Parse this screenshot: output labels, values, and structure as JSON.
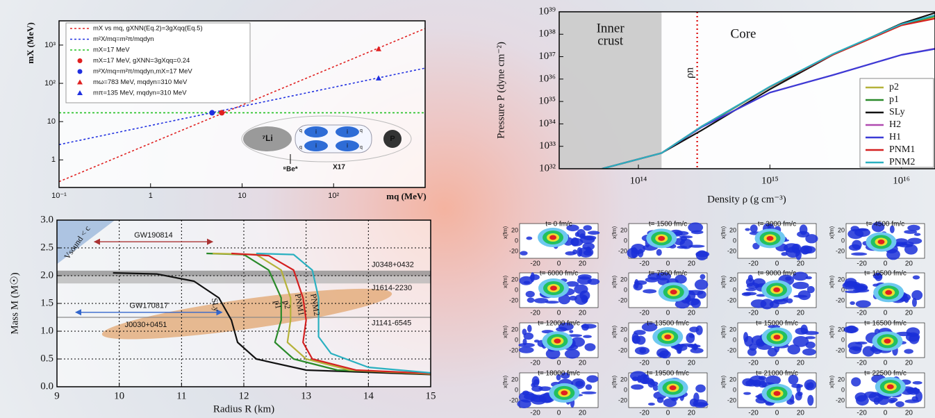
{
  "chart_data": [
    {
      "type": "line",
      "x_label": "mq (MeV)",
      "y_label": "mX (MeV)",
      "xscale": "log",
      "yscale": "log",
      "xlim": [
        0.1,
        1000
      ],
      "ylim": [
        0.19,
        4300
      ],
      "xticks": [
        {
          "value": 0.1,
          "label": "10⁻¹"
        },
        1,
        10,
        {
          "value": 100,
          "label": "10²"
        }
      ],
      "yticks": [
        1,
        10,
        {
          "value": 100,
          "label": "10²"
        },
        {
          "value": 1000,
          "label": "10³"
        }
      ],
      "legend": "upper left",
      "series": [
        {
          "name": "mX vs mq, gXNN(Eq.2)=3gXqq(Eq.5)",
          "color": "#e02020",
          "dash": "dotted",
          "x": [
            0.1,
            1000
          ],
          "values": [
            0.27,
            2700
          ]
        },
        {
          "name": "m²X/mq=m²π/mqdyn",
          "color": "#2030e0",
          "dash": "dotted",
          "x": [
            0.1,
            1000
          ],
          "values": [
            2.5,
            250
          ]
        },
        {
          "name": "mX=17 MeV",
          "color": "#20c020",
          "dash": "dotted",
          "x": [
            0.1,
            1000
          ],
          "values": [
            17,
            17
          ]
        },
        {
          "name": "mX=17 MeV, gXNN=3gXqq=0.24",
          "color": "#e02020",
          "marker": "circle",
          "x": [
            6
          ],
          "values": [
            17
          ]
        },
        {
          "name": "m²X/mq=m²π/mqdyn,mX=17 MeV",
          "color": "#2030e0",
          "marker": "circle",
          "x": [
            4.7
          ],
          "values": [
            17
          ]
        },
        {
          "name": "mω=783 MeV, mqdyn=310 MeV",
          "color": "#e02020",
          "marker": "triangle",
          "x": [
            310
          ],
          "values": [
            783
          ]
        },
        {
          "name": "mπ=135 MeV, mqdyn=310 MeV",
          "color": "#2030e0",
          "marker": "triangle",
          "x": [
            310
          ],
          "values": [
            135
          ]
        }
      ],
      "inset": {
        "nucleus": "⁷Li",
        "proton": "P",
        "product": "⁸Be*",
        "boson": "X17",
        "quark": "q",
        "cluster": "i"
      }
    },
    {
      "type": "line",
      "x_label": "Density ρ (g cm⁻³)",
      "y_label": "Pressure P (dyne cm⁻²)",
      "xscale": "log",
      "yscale": "log",
      "xlim": [
        25000000000000.0,
        1.8e+16
      ],
      "ylim": [
        1e+32,
        1e+39
      ],
      "xticks": [
        {
          "value": 100000000000000.0,
          "label": "10¹⁴"
        },
        {
          "value": 1000000000000000.0,
          "label": "10¹⁵"
        },
        {
          "value": 1e+16,
          "label": "10¹⁶"
        }
      ],
      "yticks": [
        {
          "value": 1e+32,
          "label": "10³²"
        },
        {
          "value": 1e+33,
          "label": "10³³"
        },
        {
          "value": 1e+34,
          "label": "10³⁴"
        },
        {
          "value": 1e+35,
          "label": "10³⁵"
        },
        {
          "value": 1e+36,
          "label": "10³⁶"
        },
        {
          "value": 1e+37,
          "label": "10³⁷"
        },
        {
          "value": 1e+38,
          "label": "10³⁸"
        },
        {
          "value": 1e+39,
          "label": "10³⁹"
        }
      ],
      "legend": "lower right",
      "crust": {
        "edge": 150000000000000.0,
        "labels": [
          "Inner",
          "crust"
        ]
      },
      "core_label": "Core",
      "rho_n": {
        "value": 280000000000000.0,
        "label": "ρn"
      },
      "series": [
        {
          "name": "p2",
          "color": "#b5b23a",
          "x": [
            53000000000000.0,
            150000000000000.0,
            300000000000000.0,
            1000000000000000.0,
            3000000000000000.0,
            1e+16,
            1.8e+16
          ],
          "values": [
            1e+32,
            5e+32,
            7e+33,
            4.5e+35,
            1.2e+37,
            2.5e+38,
            6e+38
          ]
        },
        {
          "name": "p1",
          "color": "#2a8a2a",
          "x": [
            53000000000000.0,
            150000000000000.0,
            300000000000000.0,
            1000000000000000.0,
            3000000000000000.0,
            1e+16,
            1.8e+16
          ],
          "values": [
            1e+32,
            5e+32,
            7e+33,
            4.5e+35,
            1.2e+37,
            2.7e+38,
            6.5e+38
          ]
        },
        {
          "name": "SLy",
          "color": "#111111",
          "x": [
            53000000000000.0,
            150000000000000.0,
            300000000000000.0,
            1000000000000000.0,
            3000000000000000.0,
            1e+16,
            1.8e+16
          ],
          "values": [
            1e+32,
            5e+32,
            5e+33,
            3.5e+35,
            1.2e+37,
            3e+38,
            9e+38
          ]
        },
        {
          "name": "H2",
          "color": "#b04ab0",
          "x": [
            53000000000000.0,
            150000000000000.0,
            300000000000000.0,
            1000000000000000.0,
            3000000000000000.0,
            1e+16,
            1.8e+16
          ],
          "values": [
            1e+32,
            5e+32,
            7e+33,
            2.5e+35,
            1.5e+36,
            1.2e+37,
            2.3e+37
          ]
        },
        {
          "name": "H1",
          "color": "#3b3bd6",
          "x": [
            53000000000000.0,
            150000000000000.0,
            300000000000000.0,
            1000000000000000.0,
            3000000000000000.0,
            1e+16,
            1.8e+16
          ],
          "values": [
            1e+32,
            5e+32,
            7e+33,
            2.5e+35,
            1.5e+36,
            1.2e+37,
            2.2e+37
          ]
        },
        {
          "name": "PNM1",
          "color": "#d42020",
          "x": [
            53000000000000.0,
            150000000000000.0,
            300000000000000.0,
            1000000000000000.0,
            3000000000000000.0,
            1e+16,
            1.8e+16
          ],
          "values": [
            1e+32,
            5e+32,
            7.5e+33,
            4.5e+35,
            1.2e+37,
            2.5e+38,
            5e+38
          ]
        },
        {
          "name": "PNM2",
          "color": "#2ab0c0",
          "x": [
            53000000000000.0,
            150000000000000.0,
            300000000000000.0,
            1000000000000000.0,
            3000000000000000.0,
            1e+16,
            1.8e+16
          ],
          "values": [
            1e+32,
            5e+32,
            7.5e+33,
            4.6e+35,
            1.3e+37,
            2.8e+38,
            7e+38
          ]
        }
      ]
    },
    {
      "type": "line",
      "x_label": "Radius R (km)",
      "y_label": "Mass M (M☉)",
      "xlim": [
        9,
        15
      ],
      "ylim": [
        0,
        3
      ],
      "xticks": [
        9,
        10,
        11,
        12,
        13,
        14,
        15
      ],
      "yticks": [
        {
          "value": 0,
          "label": "0.0"
        },
        0.5,
        {
          "value": 1,
          "label": "1.0"
        },
        1.5,
        {
          "value": 2,
          "label": "2.0"
        },
        2.5,
        {
          "value": 3,
          "label": "3.0"
        }
      ],
      "grid": true,
      "causality": {
        "label": "Vsound < c",
        "points": [
          [
            9,
            3
          ],
          [
            9.93,
            3
          ],
          [
            9,
            2.21
          ]
        ]
      },
      "bands": [
        {
          "label": "J0348+0432",
          "range": [
            1.99,
            2.09
          ],
          "color": "#8a8a8a"
        },
        {
          "label": "J1614-2230",
          "range": [
            1.86,
            1.99
          ],
          "color": "#b5b5b5"
        },
        {
          "label": "J1141-6545",
          "range": [
            1.24,
            1.26
          ],
          "color": "#888888"
        }
      ],
      "arrows": [
        {
          "label": "GW190814",
          "x": [
            9.6,
            11.5
          ],
          "y": 2.61,
          "color": "#a33"
        },
        {
          "label": "GW170817",
          "x": [
            9.3,
            11.65
          ],
          "y": 1.34,
          "color": "#36c"
        }
      ],
      "ellipse": {
        "label": "J0030+0451",
        "center": [
          12.05,
          1.31
        ],
        "rx": 2.35,
        "ry": 0.27,
        "angle": -8
      },
      "series": [
        {
          "name": "SLy",
          "color": "#111111",
          "x": [
            15,
            13,
            12.2,
            11.9,
            11.8,
            11.6,
            11.2,
            10.6,
            9.9
          ],
          "values": [
            0.22,
            0.3,
            0.5,
            0.8,
            1.2,
            1.6,
            1.9,
            2.03,
            2.05
          ]
        },
        {
          "name": "p1",
          "color": "#2a8a2a",
          "x": [
            15,
            13.5,
            12.8,
            12.5,
            12.6,
            12.6,
            12.4,
            12.0,
            11.4
          ],
          "values": [
            0.24,
            0.3,
            0.5,
            0.8,
            1.2,
            1.6,
            2.1,
            2.38,
            2.4
          ]
        },
        {
          "name": "p2",
          "color": "#b5b23a",
          "x": [
            15,
            13.7,
            13.0,
            12.7,
            12.75,
            12.75,
            12.6,
            12.2,
            11.5
          ],
          "values": [
            0.23,
            0.3,
            0.5,
            0.8,
            1.2,
            1.6,
            2.1,
            2.38,
            2.4
          ]
        },
        {
          "name": "PNM1",
          "color": "#d42020",
          "x": [
            15,
            13.8,
            13.1,
            12.95,
            13.0,
            12.95,
            12.8,
            12.4,
            11.8
          ],
          "values": [
            0.24,
            0.3,
            0.5,
            0.8,
            1.2,
            1.6,
            2.1,
            2.36,
            2.4
          ]
        },
        {
          "name": "PNM2",
          "color": "#2ab0c0",
          "x": [
            15,
            14.0,
            13.4,
            13.2,
            13.2,
            13.2,
            13.1,
            12.8,
            12.2
          ],
          "values": [
            0.25,
            0.35,
            0.6,
            0.9,
            1.2,
            1.6,
            2.1,
            2.38,
            2.4
          ]
        }
      ]
    }
  ],
  "simulation": {
    "y_label": "x(fm)",
    "ticks": [
      -20,
      0,
      20
    ],
    "panels": [
      "t= 0 fm/c",
      "t= 1500 fm/c",
      "t= 3000 fm/c",
      "t= 4500 fm/c",
      "t= 6000 fm/c",
      "t= 7500 fm/c",
      "t= 9000 fm/c",
      "t= 10500 fm/c",
      "t= 12000 fm/c",
      "t= 13500 fm/c",
      "t= 15000 fm/c",
      "t= 16500 fm/c",
      "t= 18000 fm/c",
      "t= 19500 fm/c",
      "t= 21000 fm/c",
      "t= 22500 fm/c"
    ]
  }
}
